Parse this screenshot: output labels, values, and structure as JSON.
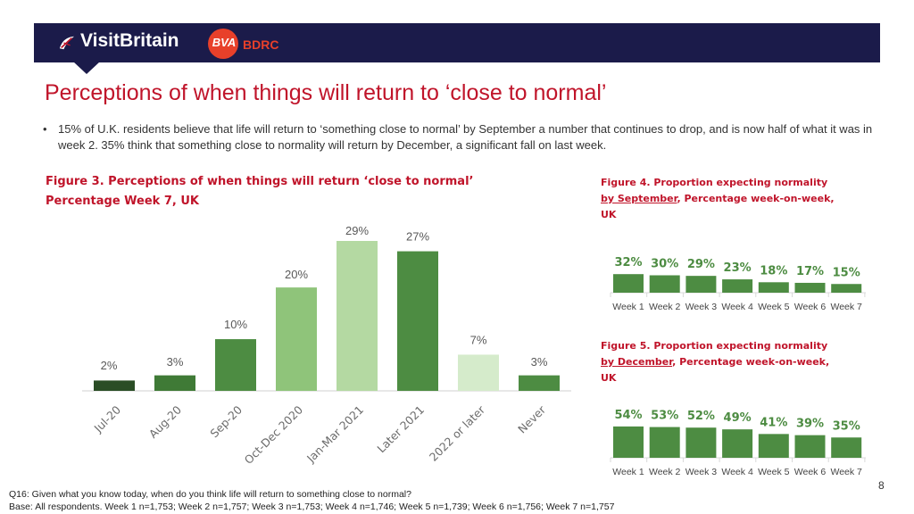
{
  "header": {
    "brand": "VisitBritain",
    "partner_logo": "BVA",
    "partner_name": "BDRC",
    "partner_color": "#e8402a",
    "banner_color": "#1b1b4a"
  },
  "title": "Perceptions of when things will return to ‘close to normal’",
  "bullet": "15% of U.K. residents believe that life will return to ‘something close to normal’ by September a number that continues to drop, and is now half of what it was in week 2. 35% think that something close to normality will return by December, a significant fall on last week.",
  "figure3": {
    "line1": "Figure 3.  Perceptions of when things will return ‘close to normal’",
    "line2": "Percentage Week 7, UK"
  },
  "figure4": {
    "prefix": "Figure 4.  Proportion expecting normality",
    "underlined": "by September",
    "suffix": ", Percentage week-on-week, UK"
  },
  "figure5": {
    "prefix": "Figure 5.  Proportion expecting normality",
    "underlined": "by December",
    "suffix": ", Percentage week-on-week, UK"
  },
  "chart_data": [
    {
      "type": "bar",
      "categories": [
        "Jul-20",
        "Aug-20",
        "Sep-20",
        "Oct-Dec 2020",
        "Jan-Mar 2021",
        "Later 2021",
        "2022 or later",
        "Never"
      ],
      "values": [
        2,
        3,
        10,
        20,
        29,
        27,
        7,
        3
      ],
      "labels": [
        "2%",
        "3%",
        "10%",
        "20%",
        "29%",
        "27%",
        "7%",
        "3%"
      ],
      "colors": [
        "#2a4d25",
        "#3f7a36",
        "#4d8c42",
        "#8fc47a",
        "#b4d9a2",
        "#4d8c42",
        "#d5ebcb",
        "#4d8c42"
      ],
      "ylim": [
        0,
        30
      ]
    },
    {
      "type": "bar",
      "categories": [
        "Week 1",
        "Week 2",
        "Week 3",
        "Week 4",
        "Week 5",
        "Week 6",
        "Week 7"
      ],
      "values": [
        32,
        30,
        29,
        23,
        18,
        17,
        15
      ],
      "labels": [
        "32%",
        "30%",
        "29%",
        "23%",
        "18%",
        "17%",
        "15%"
      ],
      "color": "#4d8c42",
      "label_color": "#4d8c42"
    },
    {
      "type": "bar",
      "categories": [
        "Week 1",
        "Week 2",
        "Week 3",
        "Week 4",
        "Week 5",
        "Week 6",
        "Week 7"
      ],
      "values": [
        54,
        53,
        52,
        49,
        41,
        39,
        35
      ],
      "labels": [
        "54%",
        "53%",
        "52%",
        "49%",
        "41%",
        "39%",
        "35%"
      ],
      "color": "#4d8c42",
      "label_color": "#4d8c42"
    }
  ],
  "page_number": "8",
  "footnote": {
    "question": "Q16: Given what you know today, when do you think life will return to something close to normal?",
    "base": "Base: All respondents. Week 1 n=1,753; Week 2 n=1,757; Week 3 n=1,753; Week 4 n=1,746; Week 5 n=1,739; Week 6 n=1,756; Week 7 n=1,757"
  }
}
